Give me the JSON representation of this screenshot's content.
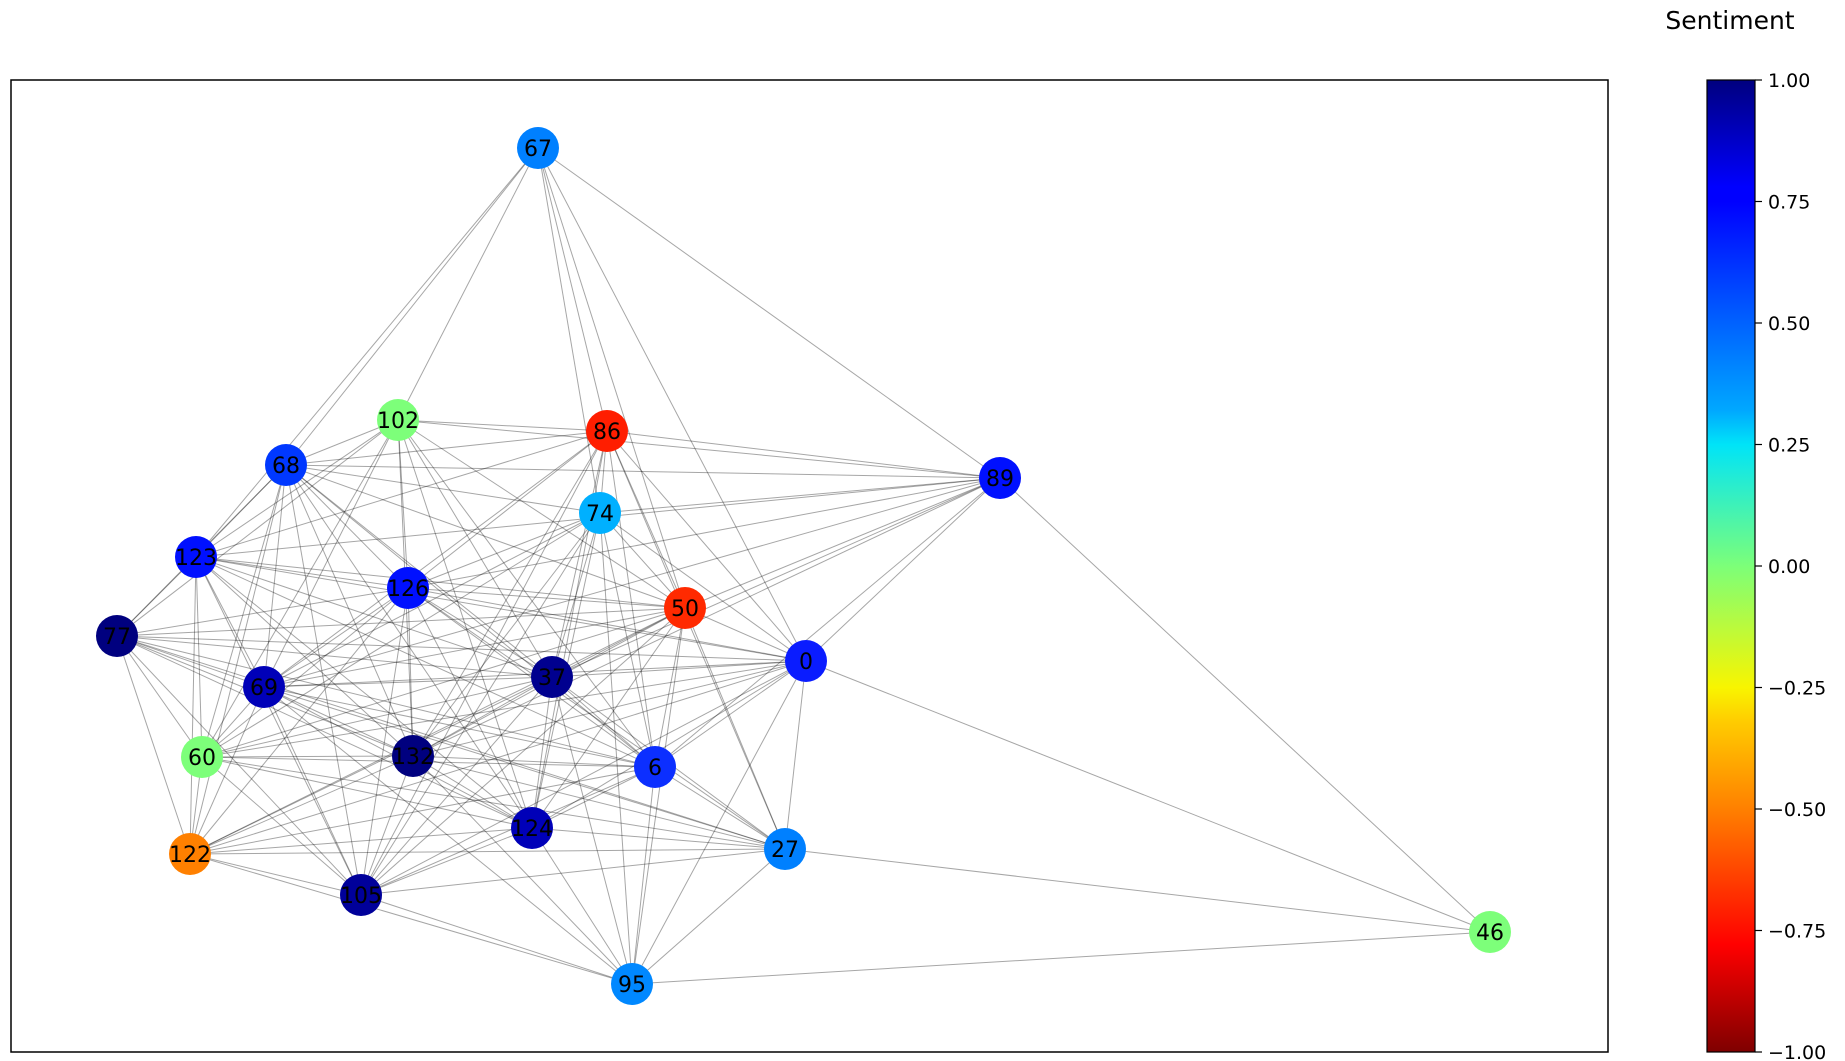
{
  "chart_data": {
    "type": "network",
    "nodes": [
      {
        "id": "0",
        "sentiment": 0.78,
        "color": "#0a1cff"
      },
      {
        "id": "6",
        "sentiment": 0.72,
        "color": "#0c2fff"
      },
      {
        "id": "27",
        "sentiment": 0.5,
        "color": "#0080ff"
      },
      {
        "id": "37",
        "sentiment": 0.92,
        "color": "#00008f"
      },
      {
        "id": "46",
        "sentiment": 0.0,
        "color": "#7dff7a"
      },
      {
        "id": "50",
        "sentiment": -0.78,
        "color": "#ff2a00"
      },
      {
        "id": "60",
        "sentiment": 0.0,
        "color": "#7dff7a"
      },
      {
        "id": "67",
        "sentiment": 0.5,
        "color": "#0080ff"
      },
      {
        "id": "68",
        "sentiment": 0.72,
        "color": "#0038ff"
      },
      {
        "id": "69",
        "sentiment": 0.88,
        "color": "#0000b8"
      },
      {
        "id": "74",
        "sentiment": 0.35,
        "color": "#00b0ff"
      },
      {
        "id": "77",
        "sentiment": 1.0,
        "color": "#00007f"
      },
      {
        "id": "86",
        "sentiment": -0.75,
        "color": "#ff1e00"
      },
      {
        "id": "89",
        "sentiment": 0.8,
        "color": "#0010ff"
      },
      {
        "id": "95",
        "sentiment": 0.5,
        "color": "#0088ff"
      },
      {
        "id": "102",
        "sentiment": 0.0,
        "color": "#7dff7a"
      },
      {
        "id": "105",
        "sentiment": 0.95,
        "color": "#00009a"
      },
      {
        "id": "122",
        "sentiment": -0.55,
        "color": "#ff8000"
      },
      {
        "id": "123",
        "sentiment": 0.78,
        "color": "#0010ff"
      },
      {
        "id": "124",
        "sentiment": 0.88,
        "color": "#0000b8"
      },
      {
        "id": "126",
        "sentiment": 0.78,
        "color": "#0010ff"
      },
      {
        "id": "132",
        "sentiment": 1.0,
        "color": "#00007f"
      }
    ],
    "edges": [
      [
        "67",
        "68"
      ],
      [
        "67",
        "123"
      ],
      [
        "67",
        "102"
      ],
      [
        "67",
        "86"
      ],
      [
        "67",
        "74"
      ],
      [
        "67",
        "89"
      ],
      [
        "67",
        "0"
      ],
      [
        "67",
        "50"
      ],
      [
        "102",
        "86"
      ],
      [
        "102",
        "68"
      ],
      [
        "102",
        "123"
      ],
      [
        "102",
        "126"
      ],
      [
        "102",
        "37"
      ],
      [
        "102",
        "50"
      ],
      [
        "102",
        "69"
      ],
      [
        "102",
        "60"
      ],
      [
        "102",
        "89"
      ],
      [
        "102",
        "77"
      ],
      [
        "102",
        "6"
      ],
      [
        "102",
        "132"
      ],
      [
        "102",
        "124"
      ],
      [
        "86",
        "68"
      ],
      [
        "86",
        "74"
      ],
      [
        "86",
        "89"
      ],
      [
        "86",
        "50"
      ],
      [
        "86",
        "0"
      ],
      [
        "86",
        "126"
      ],
      [
        "86",
        "37"
      ],
      [
        "86",
        "6"
      ],
      [
        "86",
        "27"
      ],
      [
        "86",
        "69"
      ],
      [
        "86",
        "132"
      ],
      [
        "86",
        "124"
      ],
      [
        "86",
        "105"
      ],
      [
        "86",
        "123"
      ],
      [
        "89",
        "0"
      ],
      [
        "89",
        "50"
      ],
      [
        "89",
        "68"
      ],
      [
        "89",
        "123"
      ],
      [
        "89",
        "74"
      ],
      [
        "89",
        "46"
      ],
      [
        "89",
        "37"
      ],
      [
        "89",
        "69"
      ],
      [
        "89",
        "132"
      ],
      [
        "89",
        "6"
      ],
      [
        "89",
        "126"
      ],
      [
        "68",
        "123"
      ],
      [
        "68",
        "77"
      ],
      [
        "68",
        "126"
      ],
      [
        "68",
        "69"
      ],
      [
        "68",
        "60"
      ],
      [
        "68",
        "37"
      ],
      [
        "68",
        "50"
      ],
      [
        "68",
        "132"
      ],
      [
        "68",
        "6"
      ],
      [
        "68",
        "105"
      ],
      [
        "68",
        "74"
      ],
      [
        "68",
        "124"
      ],
      [
        "68",
        "122"
      ],
      [
        "74",
        "126"
      ],
      [
        "74",
        "50"
      ],
      [
        "74",
        "37"
      ],
      [
        "74",
        "132"
      ],
      [
        "74",
        "6"
      ],
      [
        "74",
        "124"
      ],
      [
        "74",
        "95"
      ],
      [
        "74",
        "69"
      ],
      [
        "74",
        "105"
      ],
      [
        "74",
        "0"
      ],
      [
        "74",
        "60"
      ],
      [
        "123",
        "77"
      ],
      [
        "123",
        "126"
      ],
      [
        "123",
        "50"
      ],
      [
        "123",
        "69"
      ],
      [
        "123",
        "60"
      ],
      [
        "123",
        "37"
      ],
      [
        "123",
        "132"
      ],
      [
        "123",
        "6"
      ],
      [
        "123",
        "122"
      ],
      [
        "123",
        "124"
      ],
      [
        "123",
        "105"
      ],
      [
        "123",
        "0"
      ],
      [
        "126",
        "50"
      ],
      [
        "126",
        "77"
      ],
      [
        "126",
        "37"
      ],
      [
        "126",
        "69"
      ],
      [
        "126",
        "60"
      ],
      [
        "126",
        "132"
      ],
      [
        "126",
        "6"
      ],
      [
        "126",
        "124"
      ],
      [
        "126",
        "105"
      ],
      [
        "126",
        "27"
      ],
      [
        "126",
        "0"
      ],
      [
        "126",
        "122"
      ],
      [
        "50",
        "0"
      ],
      [
        "50",
        "77"
      ],
      [
        "50",
        "69"
      ],
      [
        "50",
        "37"
      ],
      [
        "50",
        "60"
      ],
      [
        "50",
        "132"
      ],
      [
        "50",
        "6"
      ],
      [
        "50",
        "124"
      ],
      [
        "50",
        "27"
      ],
      [
        "50",
        "95"
      ],
      [
        "50",
        "105"
      ],
      [
        "50",
        "122"
      ],
      [
        "77",
        "69"
      ],
      [
        "77",
        "60"
      ],
      [
        "77",
        "37"
      ],
      [
        "77",
        "132"
      ],
      [
        "77",
        "6"
      ],
      [
        "77",
        "122"
      ],
      [
        "77",
        "105"
      ],
      [
        "77",
        "124"
      ],
      [
        "77",
        "0"
      ],
      [
        "77",
        "27"
      ],
      [
        "0",
        "46"
      ],
      [
        "0",
        "37"
      ],
      [
        "0",
        "69"
      ],
      [
        "0",
        "6"
      ],
      [
        "0",
        "132"
      ],
      [
        "0",
        "124"
      ],
      [
        "0",
        "27"
      ],
      [
        "0",
        "95"
      ],
      [
        "0",
        "60"
      ],
      [
        "0",
        "105"
      ],
      [
        "0",
        "122"
      ],
      [
        "37",
        "69"
      ],
      [
        "37",
        "60"
      ],
      [
        "37",
        "132"
      ],
      [
        "37",
        "6"
      ],
      [
        "37",
        "124"
      ],
      [
        "37",
        "27"
      ],
      [
        "37",
        "95"
      ],
      [
        "37",
        "105"
      ],
      [
        "37",
        "122"
      ],
      [
        "69",
        "60"
      ],
      [
        "69",
        "132"
      ],
      [
        "69",
        "6"
      ],
      [
        "69",
        "124"
      ],
      [
        "69",
        "122"
      ],
      [
        "69",
        "105"
      ],
      [
        "69",
        "27"
      ],
      [
        "69",
        "95"
      ],
      [
        "60",
        "132"
      ],
      [
        "60",
        "6"
      ],
      [
        "60",
        "122"
      ],
      [
        "60",
        "105"
      ],
      [
        "60",
        "124"
      ],
      [
        "60",
        "27"
      ],
      [
        "132",
        "6"
      ],
      [
        "132",
        "124"
      ],
      [
        "132",
        "105"
      ],
      [
        "132",
        "95"
      ],
      [
        "132",
        "122"
      ],
      [
        "132",
        "27"
      ],
      [
        "6",
        "124"
      ],
      [
        "6",
        "27"
      ],
      [
        "6",
        "95"
      ],
      [
        "6",
        "105"
      ],
      [
        "6",
        "122"
      ],
      [
        "124",
        "105"
      ],
      [
        "124",
        "27"
      ],
      [
        "124",
        "95"
      ],
      [
        "124",
        "122"
      ],
      [
        "122",
        "105"
      ],
      [
        "122",
        "27"
      ],
      [
        "122",
        "95"
      ],
      [
        "105",
        "95"
      ],
      [
        "105",
        "27"
      ],
      [
        "27",
        "95"
      ],
      [
        "27",
        "46"
      ],
      [
        "95",
        "46"
      ]
    ],
    "colorbar": {
      "title": "Sentiment",
      "colormap": "jet",
      "range": [
        -1.0,
        1.0
      ],
      "ticks": [
        "1.00",
        "0.75",
        "0.50",
        "0.25",
        "0.00",
        "−0.25",
        "−0.50",
        "−0.75",
        "−1.00"
      ]
    }
  }
}
